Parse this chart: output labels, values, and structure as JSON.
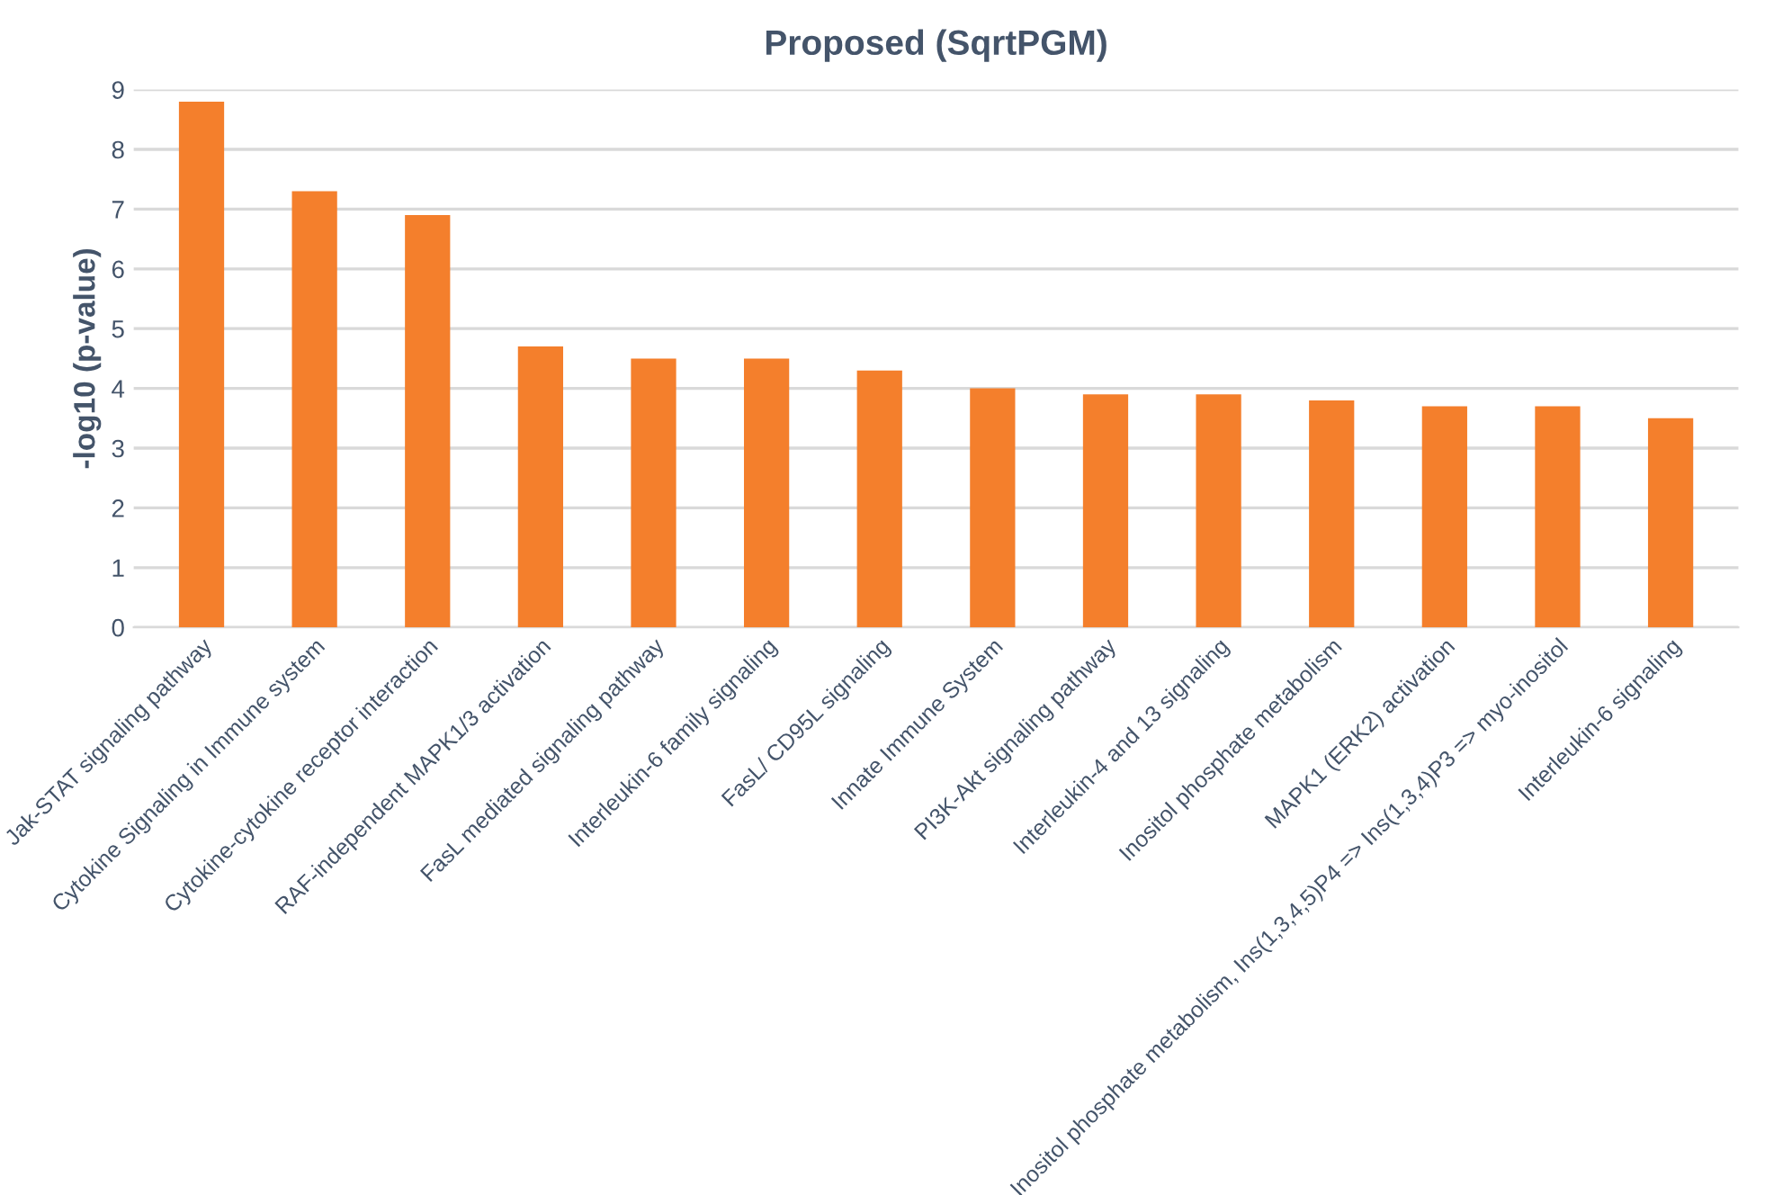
{
  "chart_data": {
    "type": "bar",
    "title": "Proposed (SqrtPGM)",
    "ylabel": "-log10 (p-value)",
    "categories": [
      "Jak-STAT signaling pathway",
      "Cytokine Signaling in Immune system",
      "Cytokine-cytokine receptor interaction",
      "RAF-independent MAPK1/3 activation",
      "FasL mediated signaling pathway",
      "Interleukin-6 family signaling",
      "FasL/ CD95L signaling",
      "Innate Immune System",
      "PI3K-Akt signaling pathway",
      "Interleukin-4 and 13 signaling",
      "Inositol phosphate metabolism",
      "MAPK1 (ERK2) activation",
      "Inositol phosphate metabolism, Ins(1,3,4,5)P4 => Ins(1,3,4)P3 => myo-inositol",
      "Interleukin-6 signaling"
    ],
    "values": [
      8.8,
      7.3,
      6.9,
      4.7,
      4.5,
      4.5,
      4.3,
      4.0,
      3.9,
      3.9,
      3.8,
      3.7,
      3.7,
      3.5
    ],
    "color": "#f47f2c",
    "ylim": [
      0,
      9
    ],
    "yticks": [
      0,
      1,
      2,
      3,
      4,
      5,
      6,
      7,
      8,
      9
    ],
    "grid": "y"
  }
}
